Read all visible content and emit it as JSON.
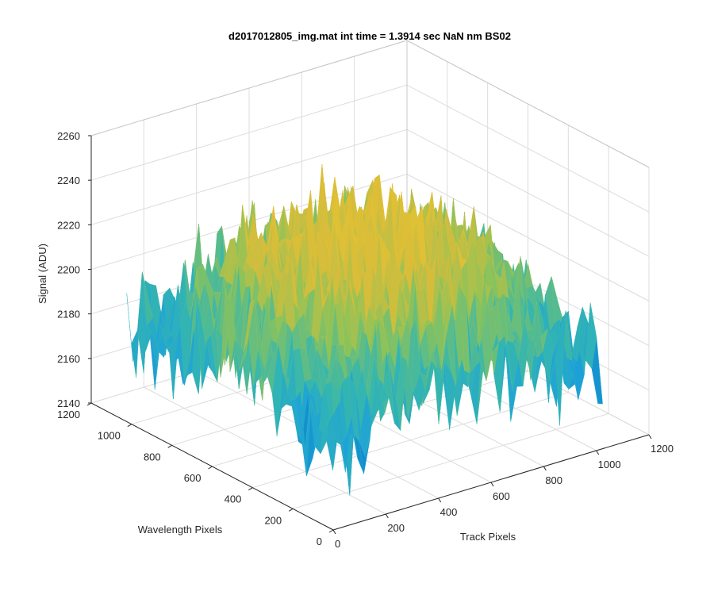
{
  "chart_data": {
    "type": "surface",
    "title": "d2017012805_img.mat int time = 1.3914 sec  NaN nm BS02",
    "xlabel": "Track Pixels",
    "ylabel": "Wavelength Pixels",
    "zlabel": "Signal (ADU)",
    "xlim": [
      0,
      1200
    ],
    "ylim": [
      0,
      1200
    ],
    "zlim": [
      2140,
      2260
    ],
    "x_ticks": [
      "0",
      "200",
      "400",
      "600",
      "800",
      "1000",
      "1200"
    ],
    "y_ticks": [
      "0",
      "200",
      "400",
      "600",
      "800",
      "1000",
      "1200"
    ],
    "z_ticks": [
      "2140",
      "2160",
      "2180",
      "2200",
      "2220",
      "2240",
      "2260"
    ],
    "grid": true,
    "colormap": [
      "#0072bd",
      "#1ea2d8",
      "#34b6b0",
      "#8cc35a",
      "#d8bd3a",
      "#e6c431"
    ],
    "surface_extent": {
      "x": [
        0,
        1024
      ],
      "y": [
        0,
        1024
      ]
    },
    "surface_signal": {
      "center_mean": 2225,
      "edge_mean": 2180,
      "noise_std": 12
    }
  }
}
